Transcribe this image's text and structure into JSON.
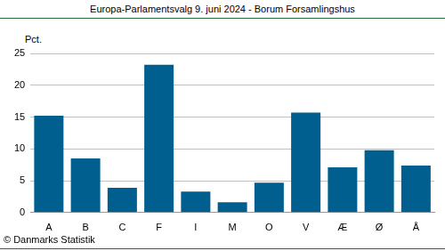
{
  "chart_data": {
    "type": "bar",
    "title": "Europa-Parlamentsvalg 9. juni 2024 - Borum Forsamlingshus",
    "y_label": "Pct.",
    "source": "© Danmarks Statistik",
    "categories": [
      "A",
      "B",
      "C",
      "F",
      "I",
      "M",
      "O",
      "V",
      "Æ",
      "Ø",
      "Å"
    ],
    "values": [
      15.2,
      8.5,
      3.9,
      23.2,
      3.3,
      1.6,
      4.7,
      15.7,
      7.1,
      9.8,
      7.4
    ],
    "color": "#005f8f",
    "ylim": [
      0,
      25
    ],
    "yticks": [
      0,
      5,
      10,
      15,
      20,
      25
    ],
    "grid": true
  }
}
